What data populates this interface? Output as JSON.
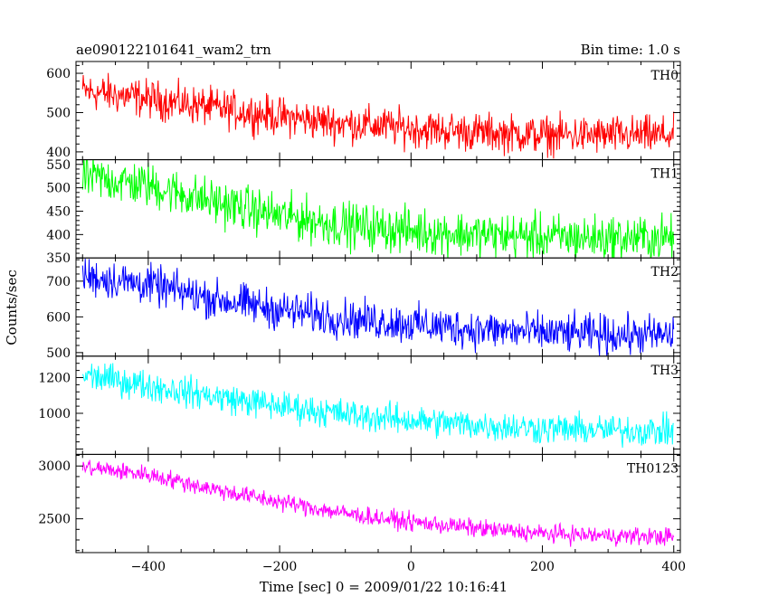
{
  "chart_data": {
    "type": "line",
    "title_left": "ae090122101641_wam2_trn",
    "title_right": "Bin time: 1.0 s",
    "xlabel": "Time [sec] 0 = 2009/01/22 10:16:41",
    "ylabel": "Counts/sec",
    "xlim": [
      -510,
      410
    ],
    "x_ticks": [
      -400,
      -200,
      0,
      200,
      400
    ],
    "x_tick_labels": [
      "−400",
      "−200",
      "0",
      "200",
      "400"
    ],
    "x_range": [
      -500,
      400
    ],
    "grid": false,
    "series": [
      {
        "name": "TH0",
        "color": "#ff0000",
        "ylim": [
          380,
          630
        ],
        "y_ticks": [
          400,
          500,
          600
        ],
        "y_tick_labels": [
          "400",
          "500",
          "600"
        ],
        "trend_x": [
          -500,
          -400,
          -300,
          -200,
          -100,
          0,
          100,
          200,
          300,
          400
        ],
        "trend_y": [
          555,
          535,
          512,
          490,
          472,
          460,
          450,
          443,
          442,
          442
        ],
        "noise": 40
      },
      {
        "name": "TH1",
        "color": "#00ff00",
        "ylim": [
          350,
          560
        ],
        "y_ticks": [
          350,
          400,
          450,
          500,
          550
        ],
        "y_tick_labels": [
          "350",
          "400",
          "450",
          "500",
          "550"
        ],
        "trend_x": [
          -500,
          -400,
          -300,
          -200,
          -100,
          0,
          100,
          200,
          300,
          400
        ],
        "trend_y": [
          525,
          505,
          470,
          440,
          420,
          408,
          400,
          395,
          392,
          393
        ],
        "noise": 40
      },
      {
        "name": "TH2",
        "color": "#0000ff",
        "ylim": [
          490,
          765
        ],
        "y_ticks": [
          500,
          600,
          700
        ],
        "y_tick_labels": [
          "500",
          "600",
          "700"
        ],
        "trend_x": [
          -500,
          -400,
          -300,
          -200,
          -100,
          0,
          100,
          200,
          300,
          400
        ],
        "trend_y": [
          715,
          690,
          650,
          620,
          595,
          580,
          565,
          555,
          550,
          548
        ],
        "noise": 45
      },
      {
        "name": "TH3",
        "color": "#00ffff",
        "ylim": [
          770,
          1320
        ],
        "y_ticks": [
          1000,
          1200
        ],
        "y_tick_labels": [
          "1000",
          "1200"
        ],
        "trend_x": [
          -500,
          -400,
          -300,
          -200,
          -100,
          0,
          100,
          200,
          300,
          400
        ],
        "trend_y": [
          1215,
          1155,
          1095,
          1040,
          995,
          960,
          935,
          915,
          905,
          900
        ],
        "noise": 70
      },
      {
        "name": "TH0123",
        "color": "#ff00ff",
        "ylim": [
          2180,
          3110
        ],
        "y_ticks": [
          2500,
          3000
        ],
        "y_tick_labels": [
          "2500",
          "3000"
        ],
        "trend_x": [
          -500,
          -400,
          -300,
          -200,
          -100,
          0,
          100,
          200,
          300,
          400
        ],
        "trend_y": [
          2990,
          2920,
          2780,
          2660,
          2550,
          2470,
          2410,
          2360,
          2340,
          2330
        ],
        "noise": 70
      }
    ]
  }
}
